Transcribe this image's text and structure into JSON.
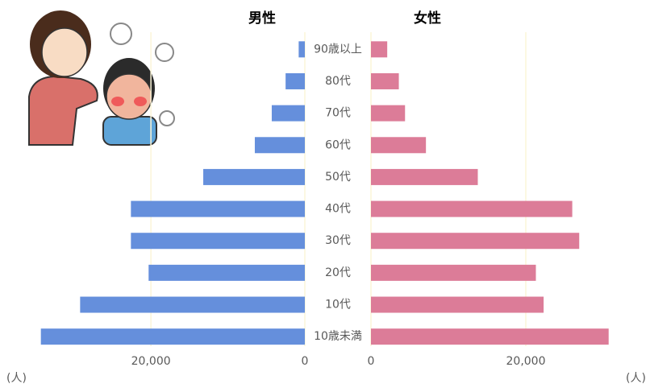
{
  "chart_data": {
    "type": "bar",
    "orientation": "horizontal-pyramid",
    "categories": [
      "90歳以上",
      "80代",
      "70代",
      "60代",
      "50代",
      "40代",
      "30代",
      "20代",
      "10代",
      "10歳未満"
    ],
    "series": [
      {
        "name": "男性",
        "color": "#658fdc",
        "values": [
          800,
          2500,
          4300,
          6500,
          13200,
          22600,
          22600,
          20300,
          29200,
          34300
        ]
      },
      {
        "name": "女性",
        "color": "#dc7c98",
        "values": [
          2100,
          3600,
          4400,
          7100,
          13800,
          26000,
          26900,
          21300,
          22300,
          30700
        ]
      }
    ],
    "xlim": [
      0,
      35000
    ],
    "xticks": [
      0,
      {
        "value": 20000,
        "label": "20,000"
      }
    ],
    "x_label": "(人)",
    "grid": true
  }
}
